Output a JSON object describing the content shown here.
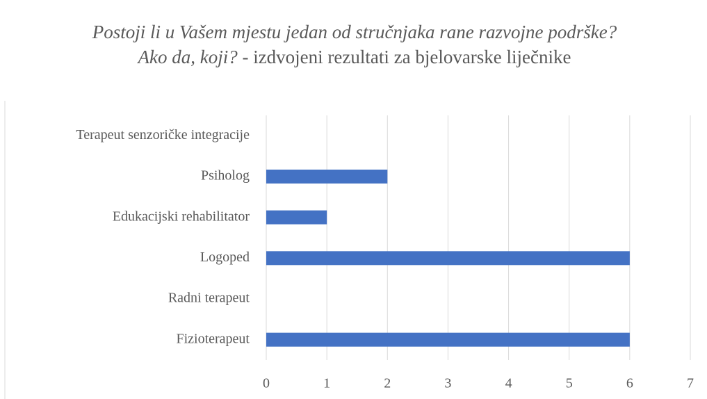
{
  "chart_data": {
    "type": "bar",
    "orientation": "horizontal",
    "title": [
      "Postoji li u Vašem mjestu jedan od stručnjaka rane razvojne podrške? Ako da, koji?",
      "- izdvojeni rezultati za bjelovarske liječnike"
    ],
    "categories": [
      "Terapeut senzoričke integracije",
      "Psiholog",
      "Edukacijski rehabilitator",
      "Logoped",
      "Radni terapeut",
      "Fizioterapeut"
    ],
    "values": [
      0,
      2,
      1,
      6,
      0,
      6
    ],
    "color": "#4472c4",
    "xlim": [
      0,
      7
    ],
    "xticks": [
      0,
      1,
      2,
      3,
      4,
      5,
      6,
      7
    ],
    "grid": true
  }
}
